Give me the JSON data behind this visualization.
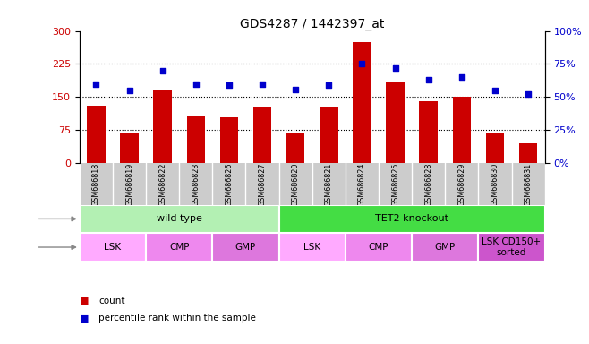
{
  "title": "GDS4287 / 1442397_at",
  "samples": [
    "GSM686818",
    "GSM686819",
    "GSM686822",
    "GSM686823",
    "GSM686826",
    "GSM686827",
    "GSM686820",
    "GSM686821",
    "GSM686824",
    "GSM686825",
    "GSM686828",
    "GSM686829",
    "GSM686830",
    "GSM686831"
  ],
  "counts": [
    130,
    68,
    165,
    108,
    105,
    128,
    70,
    128,
    275,
    185,
    140,
    150,
    68,
    45
  ],
  "percentiles": [
    60,
    55,
    70,
    60,
    59,
    60,
    56,
    59,
    75,
    72,
    63,
    65,
    55,
    52
  ],
  "bar_color": "#cc0000",
  "dot_color": "#0000cc",
  "ylim_left": [
    0,
    300
  ],
  "ylim_right": [
    0,
    100
  ],
  "yticks_left": [
    0,
    75,
    150,
    225,
    300
  ],
  "yticks_right": [
    0,
    25,
    50,
    75,
    100
  ],
  "ylabel_left_color": "#cc0000",
  "ylabel_right_color": "#0000cc",
  "genotype_groups": [
    {
      "label": "wild type",
      "start": 0,
      "end": 6,
      "color": "#b3f0b3"
    },
    {
      "label": "TET2 knockout",
      "start": 6,
      "end": 14,
      "color": "#44dd44"
    }
  ],
  "cell_type_groups": [
    {
      "label": "LSK",
      "start": 0,
      "end": 2,
      "color": "#ffaaff"
    },
    {
      "label": "CMP",
      "start": 2,
      "end": 4,
      "color": "#ee88ee"
    },
    {
      "label": "GMP",
      "start": 4,
      "end": 6,
      "color": "#dd77dd"
    },
    {
      "label": "LSK",
      "start": 6,
      "end": 8,
      "color": "#ffaaff"
    },
    {
      "label": "CMP",
      "start": 8,
      "end": 10,
      "color": "#ee88ee"
    },
    {
      "label": "GMP",
      "start": 10,
      "end": 12,
      "color": "#dd77dd"
    },
    {
      "label": "LSK CD150+\nsorted",
      "start": 12,
      "end": 14,
      "color": "#cc55cc"
    }
  ],
  "legend_count_color": "#cc0000",
  "legend_pct_color": "#0000cc",
  "background_color": "#ffffff",
  "sample_bg_color": "#cccccc",
  "grid_dotted_at": [
    75,
    150,
    225
  ]
}
